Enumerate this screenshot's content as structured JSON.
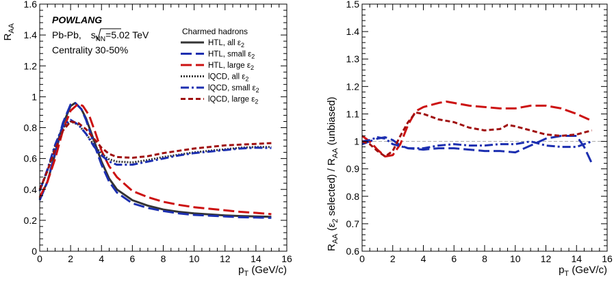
{
  "chart_data": [
    {
      "type": "line",
      "ylabel_main": "R",
      "ylabel_sub": "AA",
      "xlabel_main": "p",
      "xlabel_sub": "T",
      "xlabel_rest": " (GeV/c)",
      "xlim": [
        0,
        16
      ],
      "ylim": [
        0,
        1.6
      ],
      "xticks": [
        "0",
        "2",
        "4",
        "6",
        "8",
        "10",
        "12",
        "14",
        "16"
      ],
      "yticks": [
        "0",
        "0.2",
        "0.4",
        "0.6",
        "0.8",
        "1",
        "1.2",
        "1.4",
        "1.6"
      ],
      "annotations": {
        "title": "POWLANG",
        "system_pre": "Pb-Pb, ",
        "sqrt": "s",
        "sqrt_sub": "NN",
        "energy": "=5.02 TeV",
        "centrality": "Centrality 30-50%"
      },
      "legend_title": "Charmed hadrons",
      "series": [
        {
          "name_main": "HTL, all ",
          "name_sym": "ε",
          "name_sub": "2",
          "color": "#333333",
          "style": "solid",
          "x": [
            0,
            0.5,
            1,
            1.5,
            2,
            2.3,
            2.7,
            3,
            3.5,
            4,
            4.5,
            5,
            6,
            7,
            8,
            9,
            10,
            11,
            12,
            13,
            14,
            15
          ],
          "y": [
            0.34,
            0.45,
            0.63,
            0.82,
            0.94,
            0.96,
            0.92,
            0.86,
            0.72,
            0.58,
            0.47,
            0.4,
            0.33,
            0.295,
            0.27,
            0.255,
            0.245,
            0.238,
            0.232,
            0.228,
            0.225,
            0.223
          ]
        },
        {
          "name_main": "HTL, small ",
          "name_sym": "ε",
          "name_sub": "2",
          "color": "#1c2fb0",
          "style": "longdash",
          "x": [
            0,
            0.5,
            1,
            1.5,
            2,
            2.3,
            2.7,
            3,
            3.5,
            4,
            4.5,
            5,
            6,
            7,
            8,
            9,
            10,
            11,
            12,
            13,
            14,
            15
          ],
          "y": [
            0.33,
            0.45,
            0.64,
            0.83,
            0.95,
            0.96,
            0.92,
            0.85,
            0.7,
            0.56,
            0.45,
            0.38,
            0.31,
            0.28,
            0.26,
            0.245,
            0.235,
            0.23,
            0.225,
            0.22,
            0.218,
            0.216
          ]
        },
        {
          "name_main": "HTL, large ",
          "name_sym": "ε",
          "name_sub": "2",
          "color": "#cc1111",
          "style": "longdash",
          "x": [
            0,
            0.5,
            1,
            1.5,
            2,
            2.5,
            2.8,
            3.2,
            3.6,
            4,
            4.5,
            5,
            6,
            7,
            8,
            9,
            10,
            11,
            12,
            13,
            14,
            15
          ],
          "y": [
            0.35,
            0.45,
            0.6,
            0.78,
            0.91,
            0.955,
            0.94,
            0.88,
            0.77,
            0.65,
            0.55,
            0.48,
            0.39,
            0.35,
            0.32,
            0.3,
            0.285,
            0.275,
            0.265,
            0.255,
            0.248,
            0.24
          ]
        },
        {
          "name_main": "lQCD, all ",
          "name_sym": "ε",
          "name_sub": "2",
          "color": "#333333",
          "style": "dotted",
          "x": [
            0,
            0.5,
            1,
            1.5,
            2,
            2.5,
            3,
            3.5,
            4,
            4.5,
            5,
            6,
            7,
            8,
            9,
            10,
            11,
            12,
            13,
            14,
            15
          ],
          "y": [
            0.39,
            0.52,
            0.68,
            0.8,
            0.84,
            0.82,
            0.76,
            0.69,
            0.63,
            0.595,
            0.58,
            0.575,
            0.59,
            0.61,
            0.625,
            0.64,
            0.65,
            0.66,
            0.67,
            0.675,
            0.675
          ]
        },
        {
          "name_main": "lQCD, small ",
          "name_sym": "ε",
          "name_sub": "2",
          "color": "#1c2fb0",
          "style": "dashdot",
          "x": [
            0,
            0.5,
            1,
            1.5,
            2,
            2.5,
            3,
            3.5,
            4,
            4.5,
            5,
            6,
            7,
            8,
            9,
            10,
            11,
            12,
            13,
            14,
            15
          ],
          "y": [
            0.39,
            0.53,
            0.69,
            0.81,
            0.85,
            0.82,
            0.76,
            0.68,
            0.62,
            0.58,
            0.56,
            0.56,
            0.58,
            0.6,
            0.62,
            0.635,
            0.645,
            0.655,
            0.665,
            0.67,
            0.668
          ]
        },
        {
          "name_main": "lQCD, large ",
          "name_sym": "ε",
          "name_sub": "2",
          "color": "#a01010",
          "style": "dashed",
          "x": [
            0,
            0.5,
            1,
            1.5,
            2,
            2.5,
            3,
            3.5,
            4,
            4.5,
            5,
            6,
            7,
            8,
            9,
            10,
            11,
            12,
            13,
            14,
            15
          ],
          "y": [
            0.4,
            0.52,
            0.66,
            0.78,
            0.84,
            0.83,
            0.79,
            0.73,
            0.67,
            0.63,
            0.61,
            0.605,
            0.615,
            0.635,
            0.65,
            0.665,
            0.675,
            0.685,
            0.69,
            0.695,
            0.7
          ]
        }
      ]
    },
    {
      "type": "line",
      "ylabel_parts": [
        "R",
        "AA",
        " (",
        "ε",
        "2",
        " selected) / R",
        "AA",
        " (unbiased)"
      ],
      "xlabel_main": "p",
      "xlabel_sub": "T",
      "xlabel_rest": " (GeV/c)",
      "xlim": [
        0,
        16
      ],
      "ylim": [
        0.6,
        1.5
      ],
      "xticks": [
        "0",
        "2",
        "4",
        "6",
        "8",
        "10",
        "12",
        "14",
        "16"
      ],
      "yticks": [
        "0.6",
        "0.7",
        "0.8",
        "0.9",
        "1",
        "1.1",
        "1.2",
        "1.3",
        "1.4",
        "1.5"
      ],
      "reference_line": 1,
      "series": [
        {
          "color": "#1c2fb0",
          "style": "longdash",
          "x": [
            0,
            0.5,
            1,
            1.5,
            2,
            2.5,
            3,
            4,
            5,
            6,
            7,
            8,
            9,
            10,
            11,
            12,
            13,
            14,
            14.5,
            15
          ],
          "y": [
            0.99,
            1.0,
            1.01,
            1.015,
            1.005,
            0.985,
            0.975,
            0.97,
            0.975,
            0.975,
            0.97,
            0.965,
            0.965,
            0.96,
            0.985,
            1.01,
            1.02,
            1.02,
            0.98,
            0.92
          ]
        },
        {
          "color": "#cc1111",
          "style": "longdash",
          "x": [
            0,
            0.5,
            1,
            1.5,
            2,
            2.5,
            3,
            3.5,
            4,
            5,
            5.5,
            6,
            7,
            8,
            9,
            10,
            11,
            12,
            13,
            14,
            15
          ],
          "y": [
            1.02,
            1.0,
            0.97,
            0.945,
            0.95,
            0.99,
            1.06,
            1.11,
            1.125,
            1.14,
            1.145,
            1.14,
            1.13,
            1.125,
            1.12,
            1.12,
            1.13,
            1.13,
            1.12,
            1.1,
            1.075
          ]
        },
        {
          "color": "#1c2fb0",
          "style": "dashdot",
          "x": [
            0,
            0.5,
            1,
            1.5,
            2,
            3,
            4,
            5,
            6,
            7,
            8,
            9,
            10,
            11,
            12,
            13,
            14,
            15
          ],
          "y": [
            1.0,
            1.005,
            1.015,
            1.01,
            0.99,
            0.975,
            0.975,
            0.985,
            0.99,
            0.985,
            0.985,
            0.99,
            0.99,
            1.0,
            0.985,
            0.98,
            0.98,
            1.0
          ]
        },
        {
          "color": "#a01010",
          "style": "dashed",
          "x": [
            0,
            0.5,
            1,
            1.5,
            2,
            2.5,
            3,
            3.5,
            4,
            5,
            6,
            7,
            8,
            9,
            9.5,
            10,
            11,
            12,
            13,
            14,
            15
          ],
          "y": [
            1.0,
            0.99,
            0.965,
            0.945,
            0.965,
            1.02,
            1.07,
            1.105,
            1.1,
            1.08,
            1.07,
            1.05,
            1.04,
            1.045,
            1.06,
            1.055,
            1.04,
            1.025,
            1.02,
            1.025,
            1.04
          ]
        }
      ]
    }
  ]
}
